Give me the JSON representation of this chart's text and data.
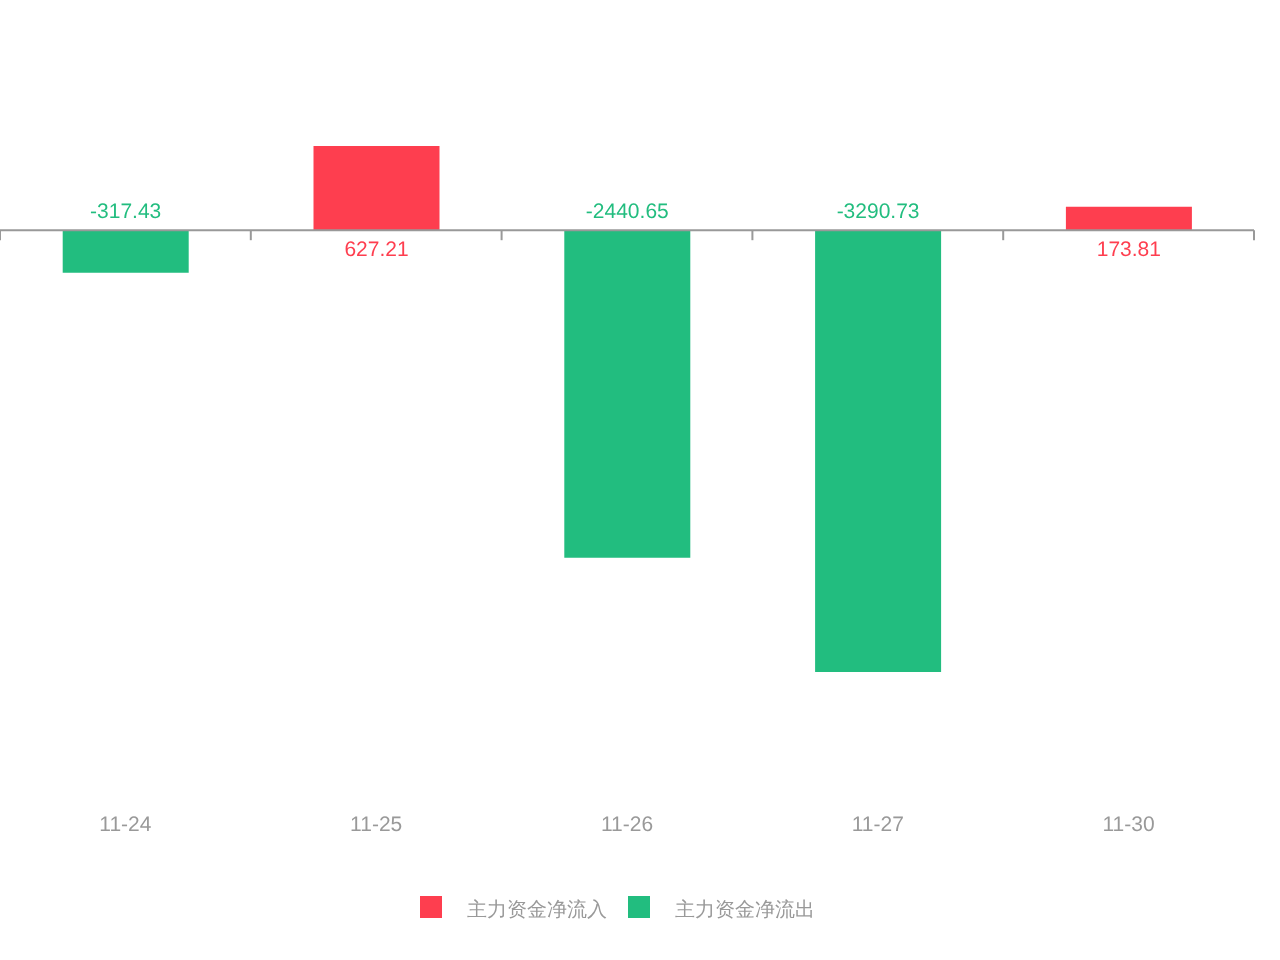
{
  "chart_data": {
    "type": "bar",
    "categories": [
      "11-24",
      "11-25",
      "11-26",
      "11-27",
      "11-30"
    ],
    "series": [
      {
        "name": "主力资金净流入",
        "color": "#fe3e4f",
        "values": [
          null,
          627.21,
          null,
          null,
          173.81
        ]
      },
      {
        "name": "主力资金净流出",
        "color": "#22bd7f",
        "values": [
          -317.43,
          null,
          -2440.65,
          -3290.73,
          null
        ]
      }
    ],
    "stacked": true,
    "data_labels": true,
    "tick_labels": "x",
    "legend": "bottom"
  }
}
